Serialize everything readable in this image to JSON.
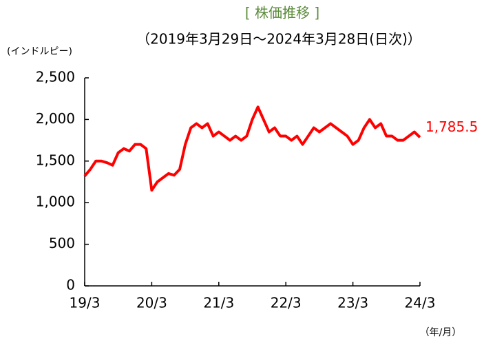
{
  "chart_data": {
    "type": "line",
    "title": "[ 株価推移 ]",
    "subtitle": "（2019年3月29日～2024年3月28日(日次)）",
    "y_label": "(インドルピー)",
    "x_label": "（年/月）",
    "categories": [
      "19/3",
      null,
      null,
      null,
      null,
      null,
      null,
      null,
      null,
      null,
      null,
      null,
      "20/3",
      null,
      null,
      null,
      null,
      null,
      null,
      null,
      null,
      null,
      null,
      null,
      "21/3",
      null,
      null,
      null,
      null,
      null,
      null,
      null,
      null,
      null,
      null,
      null,
      "22/3",
      null,
      null,
      null,
      null,
      null,
      null,
      null,
      null,
      null,
      null,
      null,
      "23/3",
      null,
      null,
      null,
      null,
      null,
      null,
      null,
      null,
      null,
      null,
      null,
      "24/3"
    ],
    "series": [
      {
        "name": "株価",
        "color": "#ff0000",
        "values": [
          1320,
          1400,
          1500,
          1500,
          1480,
          1450,
          1600,
          1650,
          1620,
          1700,
          1700,
          1650,
          1150,
          1250,
          1300,
          1350,
          1330,
          1400,
          1700,
          1900,
          1950,
          1900,
          1950,
          1800,
          1850,
          1800,
          1750,
          1800,
          1750,
          1800,
          2000,
          2150,
          2000,
          1850,
          1900,
          1800,
          1800,
          1750,
          1800,
          1700,
          1800,
          1900,
          1850,
          1900,
          1950,
          1900,
          1850,
          1800,
          1700,
          1750,
          1900,
          2000,
          1900,
          1950,
          1800,
          1800,
          1750,
          1750,
          1800,
          1850,
          1785.5
        ],
        "value_labels": [
          null,
          null,
          null,
          null,
          null,
          null,
          null,
          null,
          null,
          null,
          null,
          null,
          null,
          null,
          null,
          null,
          null,
          null,
          null,
          null,
          null,
          null,
          null,
          null,
          null,
          null,
          null,
          null,
          null,
          null,
          null,
          null,
          null,
          null,
          null,
          null,
          null,
          null,
          null,
          null,
          null,
          null,
          null,
          null,
          null,
          null,
          null,
          null,
          null,
          null,
          null,
          null,
          null,
          null,
          null,
          null,
          null,
          null,
          null,
          null,
          "1,785.5"
        ]
      }
    ],
    "ylim": [
      0,
      2500
    ],
    "yticks": [
      0,
      500,
      {
        "value": 1000,
        "label": "1,000"
      },
      {
        "value": 1500,
        "label": "1,500"
      },
      {
        "value": 2000,
        "label": "2,000"
      },
      {
        "value": 2500,
        "label": "2,500"
      }
    ]
  }
}
